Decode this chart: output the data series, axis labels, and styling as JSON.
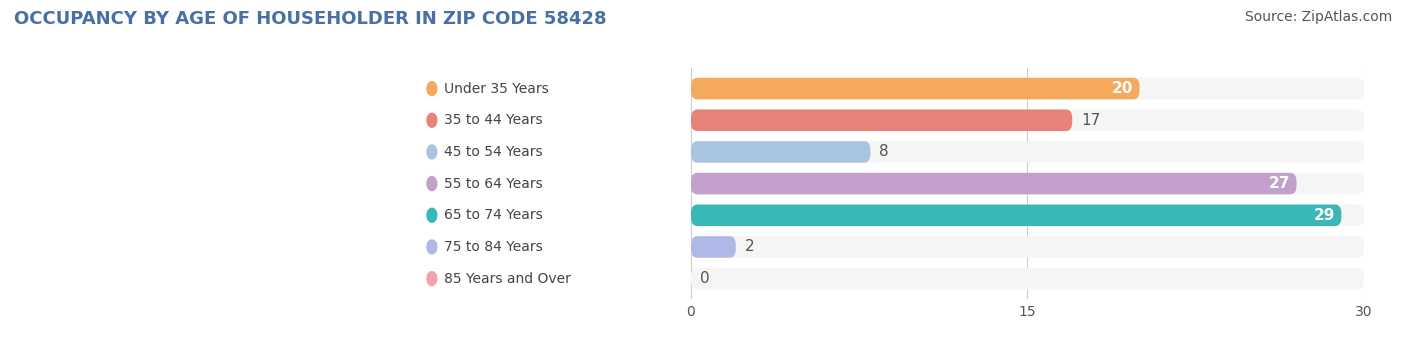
{
  "title": "OCCUPANCY BY AGE OF HOUSEHOLDER IN ZIP CODE 58428",
  "source": "Source: ZipAtlas.com",
  "categories": [
    "Under 35 Years",
    "35 to 44 Years",
    "45 to 54 Years",
    "55 to 64 Years",
    "65 to 74 Years",
    "75 to 84 Years",
    "85 Years and Over"
  ],
  "values": [
    20,
    17,
    8,
    27,
    29,
    2,
    0
  ],
  "bar_colors": [
    "#f5a95c",
    "#e8837a",
    "#a8c4e0",
    "#c3a0cc",
    "#3ab8b8",
    "#b0b8e8",
    "#f5a0b0"
  ],
  "bar_bg_colors": [
    "#f0f0f0",
    "#f0f0f0",
    "#f0f0f0",
    "#f0f0f0",
    "#f0f0f0",
    "#f0f0f0",
    "#f0f0f0"
  ],
  "label_bg_colors": [
    "#fdf0e0",
    "#fce8e6",
    "#e8f0f8",
    "#f0e8f5",
    "#e0f5f5",
    "#eceef8",
    "#fde8ed"
  ],
  "xlim": [
    0,
    30
  ],
  "xticks": [
    0,
    15,
    30
  ],
  "value_inside": [
    true,
    false,
    false,
    true,
    true,
    false,
    false
  ],
  "title_fontsize": 13,
  "source_fontsize": 10,
  "bar_label_fontsize": 11,
  "category_fontsize": 10,
  "background_color": "#ffffff",
  "plot_bg_color": "#f5f5f5"
}
